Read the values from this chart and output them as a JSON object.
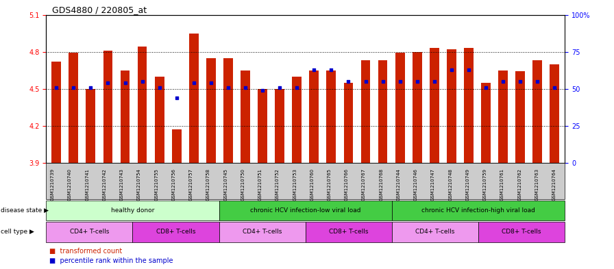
{
  "title": "GDS4880 / 220805_at",
  "samples": [
    "GSM1210739",
    "GSM1210740",
    "GSM1210741",
    "GSM1210742",
    "GSM1210743",
    "GSM1210754",
    "GSM1210755",
    "GSM1210756",
    "GSM1210757",
    "GSM1210758",
    "GSM1210745",
    "GSM1210750",
    "GSM1210751",
    "GSM1210752",
    "GSM1210753",
    "GSM1210760",
    "GSM1210765",
    "GSM1210766",
    "GSM1210767",
    "GSM1210768",
    "GSM1210744",
    "GSM1210746",
    "GSM1210747",
    "GSM1210748",
    "GSM1210749",
    "GSM1210759",
    "GSM1210761",
    "GSM1210762",
    "GSM1210763",
    "GSM1210764"
  ],
  "bar_values": [
    4.72,
    4.79,
    4.5,
    4.81,
    4.65,
    4.84,
    4.6,
    4.17,
    4.95,
    4.75,
    4.75,
    4.65,
    4.5,
    4.5,
    4.6,
    4.65,
    4.65,
    4.55,
    4.73,
    4.73,
    4.79,
    4.8,
    4.83,
    4.82,
    4.83,
    4.55,
    4.65,
    4.64,
    4.73,
    4.7
  ],
  "percentile_values": [
    51,
    51,
    51,
    54,
    54,
    55,
    51,
    44,
    54,
    54,
    51,
    51,
    49,
    51,
    51,
    63,
    63,
    55,
    55,
    55,
    55,
    55,
    55,
    63,
    63,
    51,
    55,
    55,
    55,
    51
  ],
  "ylim_left": [
    3.9,
    5.1
  ],
  "ylim_right": [
    0,
    100
  ],
  "yticks_left": [
    3.9,
    4.2,
    4.5,
    4.8,
    5.1
  ],
  "yticks_right": [
    0,
    25,
    50,
    75,
    100
  ],
  "ytick_labels_right": [
    "0",
    "25",
    "50",
    "75",
    "100%"
  ],
  "bar_color": "#cc2200",
  "dot_color": "#0000cc",
  "groups": [
    {
      "label": "healthy donor",
      "start": 0,
      "end": 9,
      "color": "#ccffcc"
    },
    {
      "label": "chronic HCV infection-low viral load",
      "start": 10,
      "end": 19,
      "color": "#44cc44"
    },
    {
      "label": "chronic HCV infection-high viral load",
      "start": 20,
      "end": 29,
      "color": "#44cc44"
    }
  ],
  "cell_type_groups": [
    {
      "label": "CD4+ T-cells",
      "start": 0,
      "end": 4,
      "color": "#ee99ee"
    },
    {
      "label": "CD8+ T-cells",
      "start": 5,
      "end": 9,
      "color": "#dd44dd"
    },
    {
      "label": "CD4+ T-cells",
      "start": 10,
      "end": 14,
      "color": "#ee99ee"
    },
    {
      "label": "CD8+ T-cells",
      "start": 15,
      "end": 19,
      "color": "#dd44dd"
    },
    {
      "label": "CD4+ T-cells",
      "start": 20,
      "end": 24,
      "color": "#ee99ee"
    },
    {
      "label": "CD8+ T-cells",
      "start": 25,
      "end": 29,
      "color": "#dd44dd"
    }
  ],
  "xtick_bg_color": "#cccccc",
  "legend_color_bar": "#cc2200",
  "legend_color_dot": "#0000cc"
}
